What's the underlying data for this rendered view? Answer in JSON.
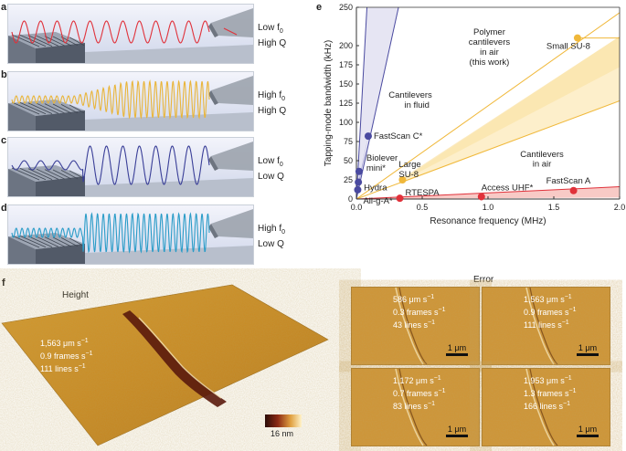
{
  "panels": [
    {
      "id": "a",
      "line1": "Low f",
      "sub1": "0",
      "line2": "High Q",
      "color": "#e0313a",
      "cycles": 12,
      "profile": "constant"
    },
    {
      "id": "b",
      "line1": "High f",
      "sub1": "0",
      "line2": "High Q",
      "color": "#e9b53a",
      "cycles": 34,
      "profile": "grow"
    },
    {
      "id": "c",
      "line1": "Low f",
      "sub1": "0",
      "line2": "Low Q",
      "color": "#3a3f98",
      "cycles": 12,
      "profile": "jump"
    },
    {
      "id": "d",
      "line1": "High f",
      "sub1": "0",
      "line2": "Low Q",
      "color": "#2a9cc8",
      "cycles": 34,
      "profile": "jump"
    }
  ],
  "panel_e_label": "e",
  "panel_f_label": "f",
  "chart_data": {
    "type": "scatter",
    "xlabel": "Resonance frequency (MHz)",
    "ylabel": "Tapping-mode bandwidth (kHz)",
    "xlim": [
      0,
      2.0
    ],
    "ylim": [
      0,
      250
    ],
    "xticks": [
      "0.0",
      "0.5",
      "1.0",
      "1.5",
      "2.0"
    ],
    "yticks": [
      "0",
      "25",
      "50",
      "75",
      "100",
      "125",
      "150",
      "175",
      "200",
      "250"
    ],
    "annotations": [
      {
        "text": "Cantilevers",
        "x": 0.41,
        "y": 132
      },
      {
        "text": "in fluid",
        "x": 0.46,
        "y": 119
      },
      {
        "text": "Polymer",
        "x": 1.01,
        "y": 214
      },
      {
        "text": "cantilevers",
        "x": 1.01,
        "y": 201
      },
      {
        "text": "in air",
        "x": 1.01,
        "y": 188
      },
      {
        "text": "(this work)",
        "x": 1.01,
        "y": 175
      },
      {
        "text": "Cantilevers",
        "x": 1.41,
        "y": 55
      },
      {
        "text": "in air",
        "x": 1.41,
        "y": 42
      }
    ],
    "series": [
      {
        "name": "fluid",
        "color": "#4a4aa0",
        "points": [
          {
            "label": "FastScan C*",
            "x": 0.09,
            "y": 82
          },
          {
            "label": "Biolever",
            "x": 0.02,
            "y": 36
          },
          {
            "label": "mini*",
            "x": null,
            "y": null
          },
          {
            "label": "Hydra",
            "x": 0.015,
            "y": 22
          },
          {
            "label": "All-g-A*",
            "x": 0.01,
            "y": 12
          }
        ]
      },
      {
        "name": "polymer",
        "color": "#f0b83a",
        "points": [
          {
            "label": "Small SU-8",
            "x": 1.68,
            "y": 210
          },
          {
            "label": "Large",
            "x": 0.35,
            "y": 25
          },
          {
            "label": "SU-8",
            "x": null,
            "y": null
          }
        ]
      },
      {
        "name": "air",
        "color": "#e0313a",
        "points": [
          {
            "label": "RTESPA",
            "x": 0.33,
            "y": 1
          },
          {
            "label": "Access UHF*",
            "x": 0.95,
            "y": 3
          },
          {
            "label": "FastScan A",
            "x": 1.65,
            "y": 11
          }
        ]
      }
    ]
  },
  "panel_f": {
    "height_label": "Height",
    "error_label": "Error",
    "colorbar_label": "16 nm",
    "height_stats": {
      "line1": "1,563 μm s",
      "line1_sup": "−1",
      "line2": "0.9 frames s",
      "line2_sup": "−1",
      "line3": "111 lines s",
      "line3_sup": "−1"
    },
    "error_images": [
      {
        "line1": "586 μm s",
        "line2": "0.3 frames s",
        "line3": "43 lines s",
        "sup": "−1",
        "scale": "1 μm"
      },
      {
        "line1": "1,563 μm s",
        "line2": "0.9 frames s",
        "line3": "111 lines s",
        "sup": "−1",
        "scale": "1 μm"
      },
      {
        "line1": "1,172 μm s",
        "line2": "0.7 frames s",
        "line3": "83 lines s",
        "sup": "−1",
        "scale": "1 μm"
      },
      {
        "line1": "1,953 μm s",
        "line2": "1.3 frames s",
        "line3": "166 lines s",
        "sup": "−1",
        "scale": "1 μm"
      }
    ]
  }
}
